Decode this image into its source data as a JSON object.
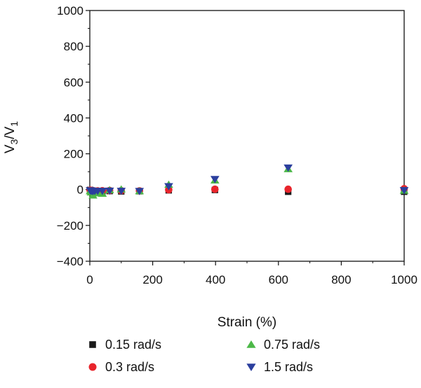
{
  "chart_data": {
    "type": "scatter",
    "xlabel": "Strain (%)",
    "ylabel_main": "V",
    "ylabel_sub1": "3",
    "ylabel_sep": "/V",
    "ylabel_sub2": "1",
    "xlim": [
      0,
      1000
    ],
    "ylim": [
      -400,
      1000
    ],
    "x_ticks": [
      0,
      200,
      400,
      600,
      800,
      1000
    ],
    "y_ticks": [
      -400,
      -200,
      0,
      200,
      400,
      600,
      800,
      1000
    ],
    "grid": false,
    "legend_position": "bottom",
    "series": [
      {
        "name": "0.15 rad/s",
        "marker": "square",
        "color": "#1a1a1a",
        "points": [
          [
            1,
            -2
          ],
          [
            2,
            -4
          ],
          [
            4,
            -5
          ],
          [
            6,
            -6
          ],
          [
            10,
            -7
          ],
          [
            16,
            -8
          ],
          [
            25,
            -8
          ],
          [
            40,
            -9
          ],
          [
            63,
            -8
          ],
          [
            100,
            -10
          ],
          [
            158,
            -9
          ],
          [
            251,
            -4
          ],
          [
            398,
            -2
          ],
          [
            631,
            -12
          ],
          [
            1000,
            -12
          ]
        ]
      },
      {
        "name": "0.3 rad/s",
        "marker": "circle",
        "color": "#e8242b",
        "points": [
          [
            1,
            -3
          ],
          [
            2,
            -5
          ],
          [
            4,
            -6
          ],
          [
            6,
            -7
          ],
          [
            10,
            -6
          ],
          [
            16,
            -8
          ],
          [
            25,
            -7
          ],
          [
            40,
            -6
          ],
          [
            63,
            -5
          ],
          [
            100,
            -6
          ],
          [
            158,
            -7
          ],
          [
            251,
            -1
          ],
          [
            398,
            2
          ],
          [
            631,
            2
          ],
          [
            1000,
            5
          ]
        ]
      },
      {
        "name": "0.75 rad/s",
        "marker": "triangle-up",
        "color": "#4cb848",
        "points": [
          [
            1,
            -8
          ],
          [
            4,
            -15
          ],
          [
            10,
            -32
          ],
          [
            16,
            -20
          ],
          [
            25,
            -15
          ],
          [
            40,
            -22
          ],
          [
            63,
            -2
          ],
          [
            100,
            2
          ],
          [
            158,
            -8
          ],
          [
            251,
            28
          ],
          [
            398,
            52
          ],
          [
            631,
            115
          ],
          [
            1000,
            -5
          ]
        ]
      },
      {
        "name": "1.5 rad/s",
        "marker": "triangle-down",
        "color": "#2b3f9e",
        "points": [
          [
            1,
            -5
          ],
          [
            2,
            -6
          ],
          [
            4,
            -6
          ],
          [
            6,
            -8
          ],
          [
            10,
            -10
          ],
          [
            16,
            -9
          ],
          [
            25,
            -8
          ],
          [
            40,
            -8
          ],
          [
            63,
            -7
          ],
          [
            100,
            -8
          ],
          [
            158,
            -9
          ],
          [
            251,
            18
          ],
          [
            398,
            58
          ],
          [
            631,
            122
          ],
          [
            1000,
            -4
          ]
        ]
      }
    ]
  }
}
